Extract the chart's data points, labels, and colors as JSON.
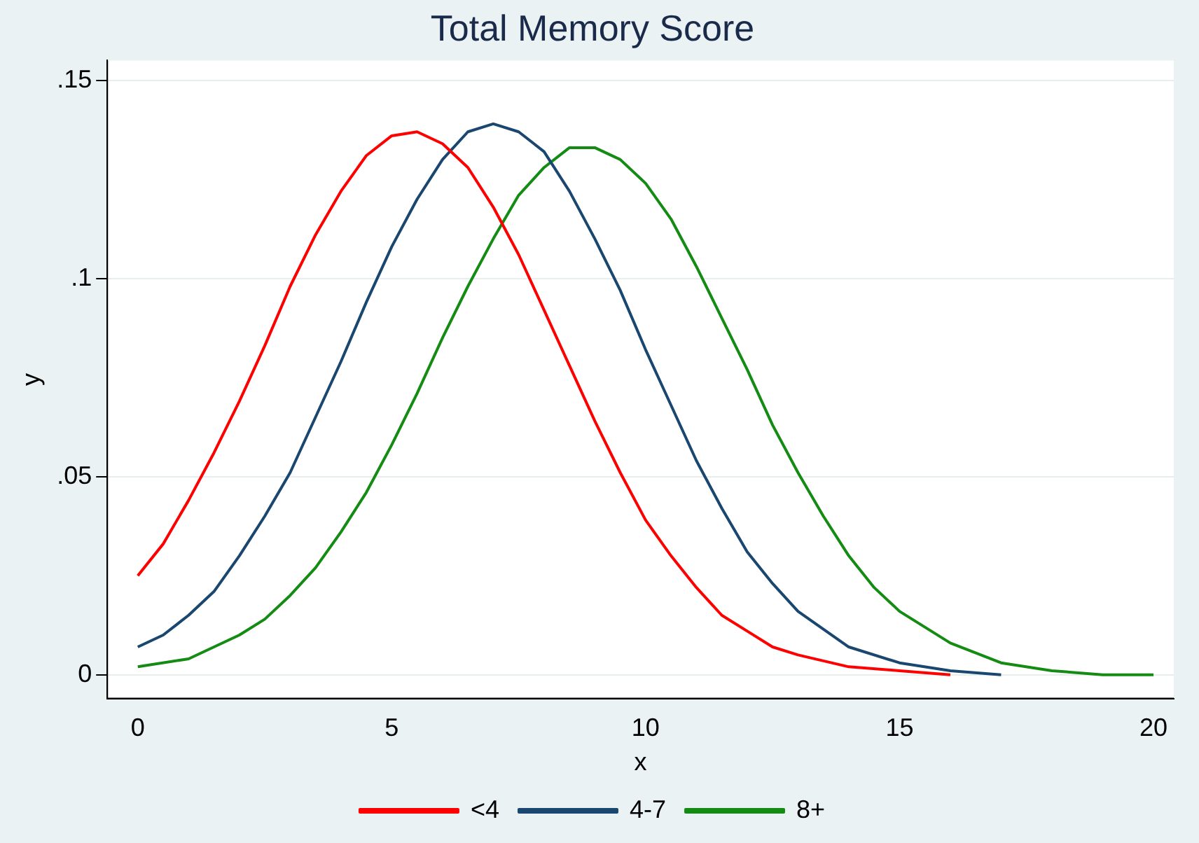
{
  "chart_data": {
    "type": "line",
    "title": "Total Memory Score",
    "xlabel": "x",
    "ylabel": "y",
    "xlim": [
      -0.6,
      20.4
    ],
    "xticks": [
      0,
      5,
      10,
      15,
      20
    ],
    "ylim": [
      -0.006,
      0.155
    ],
    "yticks": [
      {
        "value": 0,
        "label": "0"
      },
      {
        "value": 0.05,
        "label": ".05"
      },
      {
        "value": 0.1,
        "label": ".1"
      },
      {
        "value": 0.15,
        "label": ".15"
      }
    ],
    "grid": "y",
    "legend": "bottom",
    "marker": "none",
    "line_style": "solid",
    "series": [
      {
        "name": "<4",
        "color": "#ff0000",
        "x": [
          0,
          0.5,
          1,
          1.5,
          2,
          2.5,
          3,
          3.5,
          4,
          4.5,
          5,
          5.5,
          6,
          6.5,
          7,
          7.5,
          8,
          8.5,
          9,
          9.5,
          10,
          10.5,
          11,
          11.5,
          12,
          12.5,
          13,
          14,
          15,
          16
        ],
        "values": [
          0.025,
          0.033,
          0.044,
          0.056,
          0.069,
          0.083,
          0.098,
          0.111,
          0.122,
          0.131,
          0.136,
          0.137,
          0.134,
          0.128,
          0.118,
          0.106,
          0.092,
          0.078,
          0.064,
          0.051,
          0.039,
          0.03,
          0.022,
          0.015,
          0.011,
          0.007,
          0.005,
          0.002,
          0.001,
          0
        ]
      },
      {
        "name": "4-7",
        "color": "#1a476f",
        "x": [
          0,
          0.5,
          1,
          1.5,
          2,
          2.5,
          3,
          3.5,
          4,
          4.5,
          5,
          5.5,
          6,
          6.5,
          7,
          7.5,
          8,
          8.5,
          9,
          9.5,
          10,
          10.5,
          11,
          11.5,
          12,
          12.5,
          13,
          14,
          15,
          16,
          17
        ],
        "values": [
          0.007,
          0.01,
          0.015,
          0.021,
          0.03,
          0.04,
          0.051,
          0.065,
          0.079,
          0.094,
          0.108,
          0.12,
          0.13,
          0.137,
          0.139,
          0.137,
          0.132,
          0.122,
          0.11,
          0.097,
          0.082,
          0.068,
          0.054,
          0.042,
          0.031,
          0.023,
          0.016,
          0.007,
          0.003,
          0.001,
          0
        ]
      },
      {
        "name": "8+",
        "color": "#148c14",
        "x": [
          0,
          1,
          2,
          2.5,
          3,
          3.5,
          4,
          4.5,
          5,
          5.5,
          6,
          6.5,
          7,
          7.5,
          8,
          8.5,
          9,
          9.5,
          10,
          10.5,
          11,
          11.5,
          12,
          12.5,
          13,
          13.5,
          14,
          14.5,
          15,
          16,
          17,
          18,
          19,
          20
        ],
        "values": [
          0.002,
          0.004,
          0.01,
          0.014,
          0.02,
          0.027,
          0.036,
          0.046,
          0.058,
          0.071,
          0.085,
          0.098,
          0.11,
          0.121,
          0.128,
          0.133,
          0.133,
          0.13,
          0.124,
          0.115,
          0.103,
          0.09,
          0.077,
          0.063,
          0.051,
          0.04,
          0.03,
          0.022,
          0.016,
          0.008,
          0.003,
          0.001,
          0,
          0
        ]
      }
    ]
  }
}
